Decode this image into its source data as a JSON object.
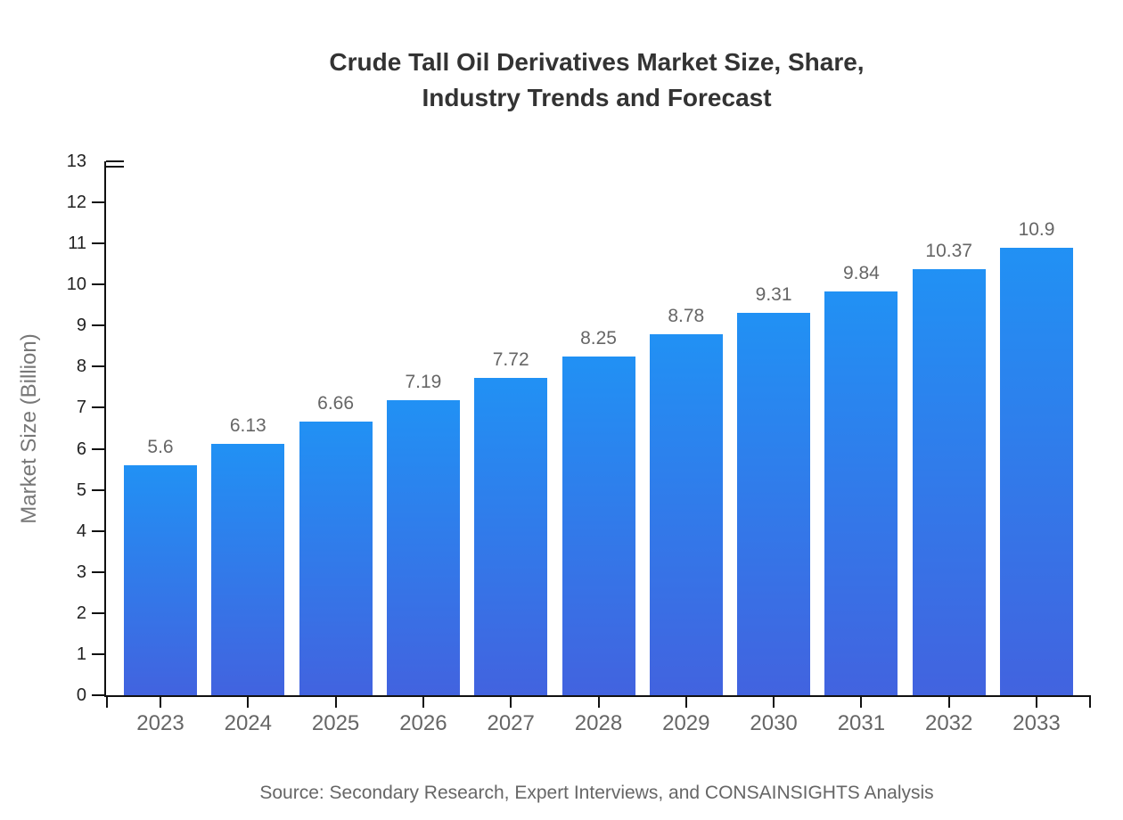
{
  "title": {
    "line1": "Crude Tall Oil Derivatives Market Size, Share,",
    "line2": "Industry Trends and Forecast"
  },
  "source": "Source: Secondary Research, Expert Interviews, and CONSAINSIGHTS Analysis",
  "chart_data": {
    "type": "bar",
    "title": "Crude Tall Oil Derivatives Market Size, Share, Industry Trends and Forecast",
    "categories": [
      "2023",
      "2024",
      "2025",
      "2026",
      "2027",
      "2028",
      "2029",
      "2030",
      "2031",
      "2032",
      "2033"
    ],
    "values": [
      5.6,
      6.13,
      6.66,
      7.19,
      7.72,
      8.25,
      8.78,
      9.31,
      9.84,
      10.37,
      10.9
    ],
    "value_labels": [
      "5.6",
      "6.13",
      "6.66",
      "7.19",
      "7.72",
      "8.25",
      "8.78",
      "9.31",
      "9.84",
      "10.37",
      "10.9"
    ],
    "xlabel": "",
    "ylabel": "Market Size (Billion)",
    "ylim": [
      0,
      13
    ],
    "ytick_step": 1,
    "grid": false,
    "legend": null,
    "bar_color_top": "#2191f4",
    "bar_color_bottom": "#4263df",
    "axis_color": "#111111",
    "value_label_color": "#666666",
    "category_label_color": "#666666",
    "ytick_label_color": "#222222",
    "title_color": "#333333",
    "source_color": "#666666"
  }
}
